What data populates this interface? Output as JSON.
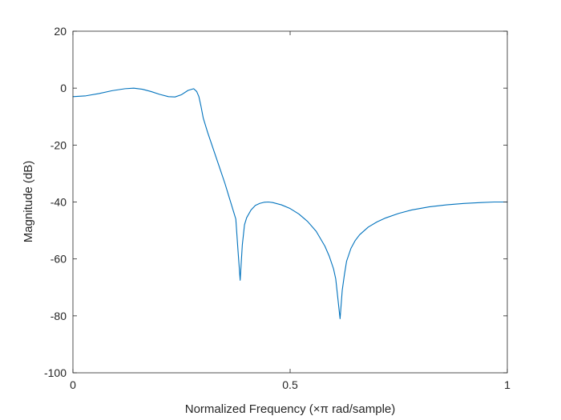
{
  "chart_data": {
    "type": "line",
    "title": "",
    "xlabel": "Normalized Frequency (×π rad/sample)",
    "ylabel": "Magnitude (dB)",
    "xlim": [
      0,
      1
    ],
    "ylim": [
      -100,
      20
    ],
    "xticks": [
      0,
      0.5,
      1
    ],
    "xtick_labels": [
      "0",
      "0.5",
      "1"
    ],
    "yticks": [
      20,
      0,
      -20,
      -40,
      -60,
      -80,
      -100
    ],
    "ytick_labels": [
      "20",
      "0",
      "-20",
      "-40",
      "-60",
      "-80",
      "-100"
    ],
    "grid": false,
    "line_color": "#0072BD",
    "series": [
      {
        "x": [
          0.0,
          0.03,
          0.06,
          0.09,
          0.12,
          0.14,
          0.16,
          0.18,
          0.2,
          0.22,
          0.235,
          0.25,
          0.265,
          0.278,
          0.285,
          0.29,
          0.295,
          0.3,
          0.31,
          0.32,
          0.33,
          0.34,
          0.35,
          0.36,
          0.37,
          0.375,
          0.38,
          0.385,
          0.39,
          0.395,
          0.4,
          0.41,
          0.42,
          0.43,
          0.44,
          0.45,
          0.46,
          0.48,
          0.5,
          0.52,
          0.54,
          0.56,
          0.58,
          0.59,
          0.6,
          0.605,
          0.61,
          0.615,
          0.62,
          0.625,
          0.63,
          0.64,
          0.65,
          0.66,
          0.68,
          0.7,
          0.72,
          0.75,
          0.78,
          0.82,
          0.86,
          0.9,
          0.94,
          0.97,
          1.0
        ],
        "y": [
          -3.0,
          -2.7,
          -1.9,
          -0.9,
          -0.2,
          0.0,
          -0.4,
          -1.2,
          -2.2,
          -3.0,
          -3.1,
          -2.3,
          -0.8,
          -0.2,
          -1.2,
          -3.0,
          -6.5,
          -10.5,
          -15.5,
          -20.0,
          -24.5,
          -29.0,
          -33.5,
          -38.5,
          -43.5,
          -46.0,
          -57.0,
          -67.5,
          -55.0,
          -48.0,
          -45.5,
          -42.8,
          -41.2,
          -40.5,
          -40.1,
          -40.0,
          -40.2,
          -41.0,
          -42.3,
          -44.2,
          -46.8,
          -50.3,
          -55.5,
          -59.0,
          -63.5,
          -67.0,
          -74.0,
          -81.0,
          -71.0,
          -65.5,
          -60.8,
          -56.3,
          -53.5,
          -51.5,
          -48.8,
          -47.0,
          -45.6,
          -44.0,
          -42.8,
          -41.7,
          -41.0,
          -40.5,
          -40.2,
          -40.0,
          -40.0
        ]
      }
    ]
  }
}
